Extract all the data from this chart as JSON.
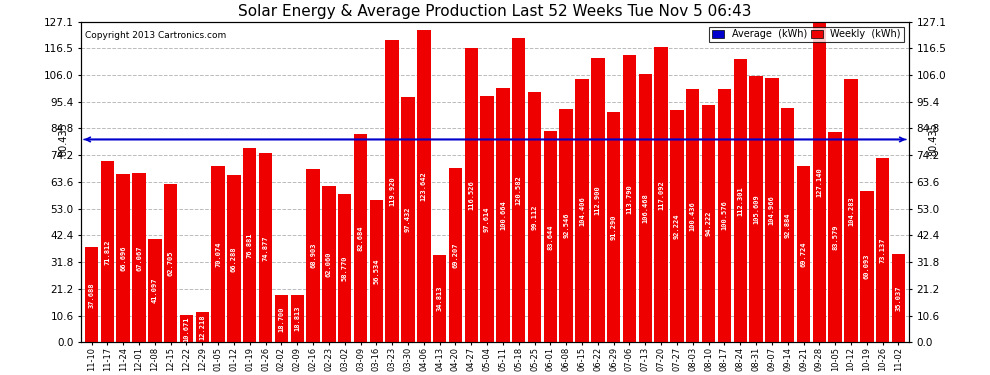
{
  "title": "Solar Energy & Average Production Last 52 Weeks Tue Nov 5 06:43",
  "copyright": "Copyright 2013 Cartronics.com",
  "average_line": 80.435,
  "bar_color": "#ee0000",
  "average_line_color": "#0000cc",
  "background_color": "#ffffff",
  "plot_bg_color": "#ffffff",
  "grid_color": "#bbbbbb",
  "ylim": [
    0,
    127.1
  ],
  "yticks": [
    0.0,
    10.6,
    21.2,
    31.8,
    42.4,
    53.0,
    63.6,
    74.2,
    84.8,
    95.4,
    106.0,
    116.5,
    127.1
  ],
  "legend_avg_color": "#0000cc",
  "legend_weekly_color": "#ee0000",
  "categories": [
    "11-10",
    "11-17",
    "11-24",
    "12-01",
    "12-08",
    "12-15",
    "12-22",
    "12-29",
    "01-05",
    "01-12",
    "01-19",
    "01-26",
    "02-02",
    "02-09",
    "02-16",
    "02-23",
    "03-02",
    "03-09",
    "03-16",
    "03-23",
    "03-30",
    "04-06",
    "04-13",
    "04-20",
    "04-27",
    "05-04",
    "05-11",
    "05-18",
    "05-25",
    "06-01",
    "06-08",
    "06-15",
    "06-22",
    "06-29",
    "07-06",
    "07-13",
    "07-20",
    "07-27",
    "08-03",
    "08-10",
    "08-17",
    "08-24",
    "08-31",
    "09-07",
    "09-14",
    "09-21",
    "09-28",
    "10-05",
    "10-12",
    "10-19",
    "10-26",
    "11-02"
  ],
  "values": [
    37.688,
    71.812,
    66.696,
    67.067,
    41.097,
    62.705,
    10.671,
    12.218,
    70.074,
    66.288,
    76.881,
    74.877,
    18.7,
    18.813,
    68.903,
    62.06,
    58.77,
    82.684,
    56.534,
    119.92,
    97.432,
    123.642,
    34.813,
    69.207,
    116.526,
    97.614,
    100.664,
    120.582,
    99.112,
    83.644,
    92.546,
    104.406,
    112.9,
    91.29,
    113.79,
    106.468,
    117.092,
    92.224,
    100.436,
    94.222,
    100.576,
    112.301,
    105.609,
    104.966,
    92.884,
    69.724,
    127.14,
    83.579,
    104.283,
    60.093,
    73.137,
    35.037
  ]
}
